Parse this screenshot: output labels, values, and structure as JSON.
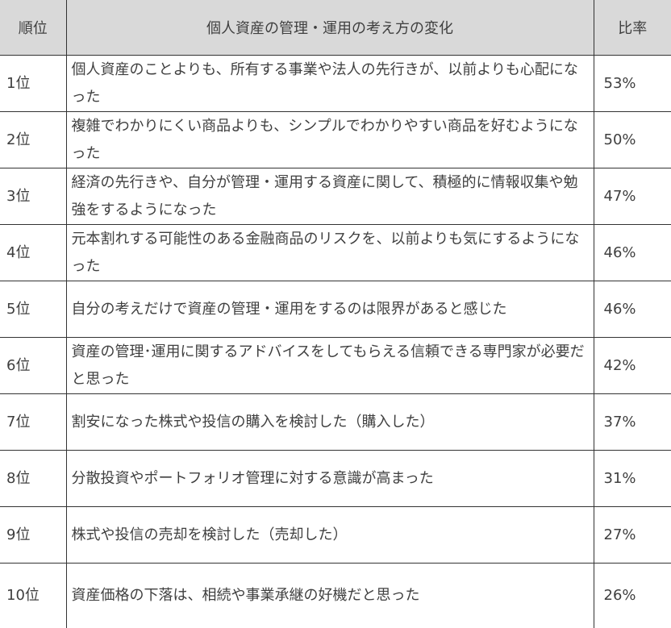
{
  "table": {
    "headers": [
      "順位",
      "個人資産の管理・運用の考え方の変化",
      "比率"
    ],
    "rows": [
      {
        "rank": "1位",
        "text": "個人資産のことよりも、所有する事業や法人の先行きが、以前よりも心配になった",
        "ratio": "53%"
      },
      {
        "rank": "2位",
        "text": "複雑でわかりにくい商品よりも、シンプルでわかりやすい商品を好むようになった",
        "ratio": "50%"
      },
      {
        "rank": "3位",
        "text": "経済の先行きや、自分が管理・運用する資産に関して、積極的に情報収集や勉強をするようになった",
        "ratio": "47%"
      },
      {
        "rank": "4位",
        "text": "元本割れする可能性のある金融商品のリスクを、以前よりも気にするようになった",
        "ratio": "46%"
      },
      {
        "rank": "5位",
        "text": "自分の考えだけで資産の管理・運用をするのは限界があると感じた",
        "ratio": "46%"
      },
      {
        "rank": "6位",
        "text": "資産の管理･運用に関するアドバイスをしてもらえる信頼できる専門家が必要だと思った",
        "ratio": "42%"
      },
      {
        "rank": "7位",
        "text": "割安になった株式や投信の購入を検討した（購入した）",
        "ratio": "37%"
      },
      {
        "rank": "8位",
        "text": "分散投資やポートフォリオ管理に対する意識が高まった",
        "ratio": "31%"
      },
      {
        "rank": "9位",
        "text": "株式や投信の売却を検討した（売却した）",
        "ratio": "27%"
      },
      {
        "rank": "10位",
        "text": "資産価格の下落は、相続や事業承継の好機だと思った",
        "ratio": "26%"
      }
    ]
  }
}
